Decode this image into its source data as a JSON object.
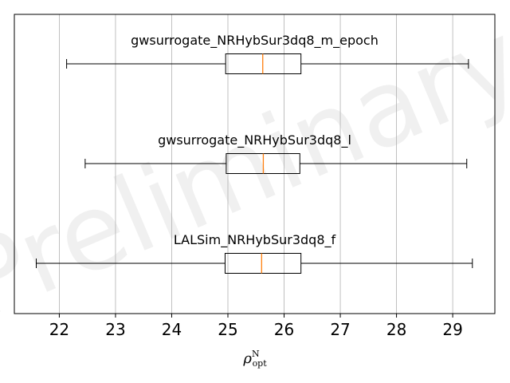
{
  "chart_data": {
    "type": "boxplot",
    "orientation": "horizontal",
    "watermark": "Preliminary",
    "xlabel": {
      "symbol": "ρ",
      "superscript": "N",
      "subscript": "opt"
    },
    "xlim": [
      21.2,
      29.75
    ],
    "xticks": [
      22,
      23,
      24,
      25,
      26,
      27,
      28,
      29
    ],
    "grid": "x",
    "series": [
      {
        "name": "gwsurrogate_NRHybSur3dq8_m_epoch",
        "whisker_low": 22.13,
        "q1": 24.96,
        "median": 25.62,
        "q3": 26.3,
        "whisker_high": 29.28
      },
      {
        "name": "gwsurrogate_NRHybSur3dq8_l",
        "whisker_low": 22.46,
        "q1": 24.97,
        "median": 25.63,
        "q3": 26.28,
        "whisker_high": 29.25
      },
      {
        "name": "LALSim_NRHybSur3dq8_f",
        "whisker_low": 21.59,
        "q1": 24.95,
        "median": 25.6,
        "q3": 26.3,
        "whisker_high": 29.35
      }
    ],
    "colors": {
      "box": "#000000",
      "median": "#ff7f0e",
      "grid": "#b0b0b0"
    }
  }
}
